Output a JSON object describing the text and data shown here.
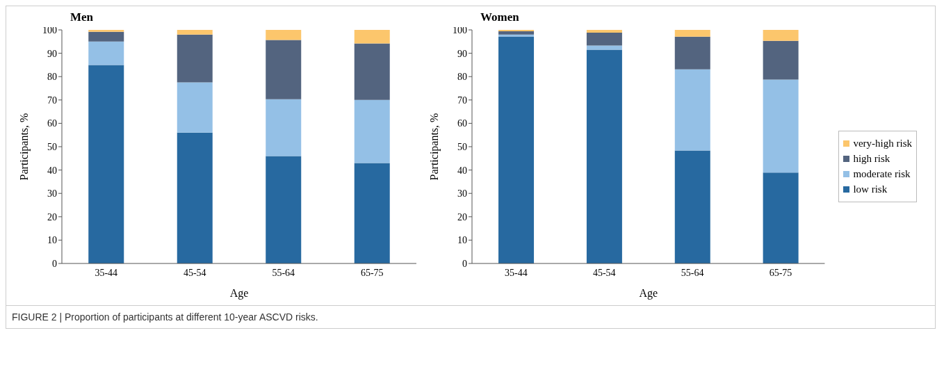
{
  "chart_data": [
    {
      "type": "bar",
      "title": "Men",
      "xlabel": "Age",
      "ylabel": "Participants, %",
      "categories": [
        "35-44",
        "45-54",
        "55-64",
        "65-75"
      ],
      "stacked": true,
      "ylim": [
        0,
        100
      ],
      "yticks": [
        0,
        10,
        20,
        30,
        40,
        50,
        60,
        70,
        80,
        90,
        100
      ],
      "grid": false,
      "legend": false,
      "series": [
        {
          "color": "#2769a0",
          "values": [
            85,
            56,
            46,
            43
          ]
        },
        {
          "color": "#94c0e6",
          "values": [
            10,
            21.5,
            24.3,
            27
          ]
        },
        {
          "color": "#53647f",
          "values": [
            4.2,
            20.5,
            25.4,
            24.2
          ]
        },
        {
          "color": "#fcc66c",
          "values": [
            0.8,
            2,
            4.3,
            5.8
          ]
        }
      ],
      "annotations": [
        "FIGURE 2 | Proportion of participants at different 10-year ASCVD risks."
      ]
    },
    {
      "type": "bar",
      "title": "Women",
      "xlabel": "Age",
      "ylabel": "Participants, %",
      "categories": [
        "35-44",
        "45-54",
        "55-64",
        "65-75"
      ],
      "stacked": true,
      "ylim": [
        0,
        100
      ],
      "yticks": [
        0,
        10,
        20,
        30,
        40,
        50,
        60,
        70,
        80,
        90,
        100
      ],
      "grid": false,
      "legend": "right",
      "series": [
        {
          "name": "low risk",
          "color": "#2769a0",
          "values": [
            97.2,
            91.5,
            48.4,
            38.9
          ]
        },
        {
          "name": "moderate risk",
          "color": "#94c0e6",
          "values": [
            0.8,
            1.8,
            34.7,
            39.8
          ]
        },
        {
          "name": "high risk",
          "color": "#53647f",
          "values": [
            1.4,
            5.5,
            14,
            16.6
          ]
        },
        {
          "name": "very-high risk",
          "color": "#fcc66c",
          "values": [
            0.6,
            1.2,
            2.9,
            4.7
          ]
        }
      ]
    }
  ]
}
